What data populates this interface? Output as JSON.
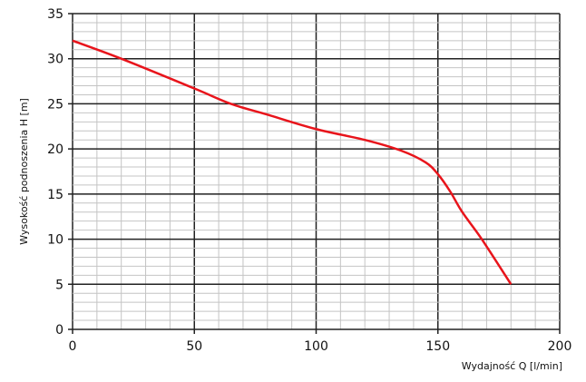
{
  "chart_data": {
    "type": "line",
    "title": "",
    "xlabel": "Wydajność Q [l/min]",
    "ylabel": "Wysokość podnoszenia H [m]",
    "xlim": [
      0,
      200
    ],
    "ylim": [
      0,
      35
    ],
    "xticks": [
      "0",
      "50",
      "100",
      "150",
      "200"
    ],
    "yticks": [
      "0",
      "5",
      "10",
      "15",
      "20",
      "25",
      "30",
      "35"
    ],
    "grid": {
      "major_x": 50,
      "minor_x": 10,
      "major_y": 5,
      "minor_y": 1
    },
    "series": [
      {
        "color": "#e8141b",
        "x": [
          0,
          20,
          50,
          65,
          80,
          100,
          120,
          135,
          145,
          150,
          155,
          160,
          168,
          180
        ],
        "y": [
          32,
          30,
          26.7,
          25,
          23.8,
          22.2,
          21,
          19.8,
          18.5,
          17.2,
          15.3,
          13,
          10,
          5
        ]
      }
    ]
  }
}
